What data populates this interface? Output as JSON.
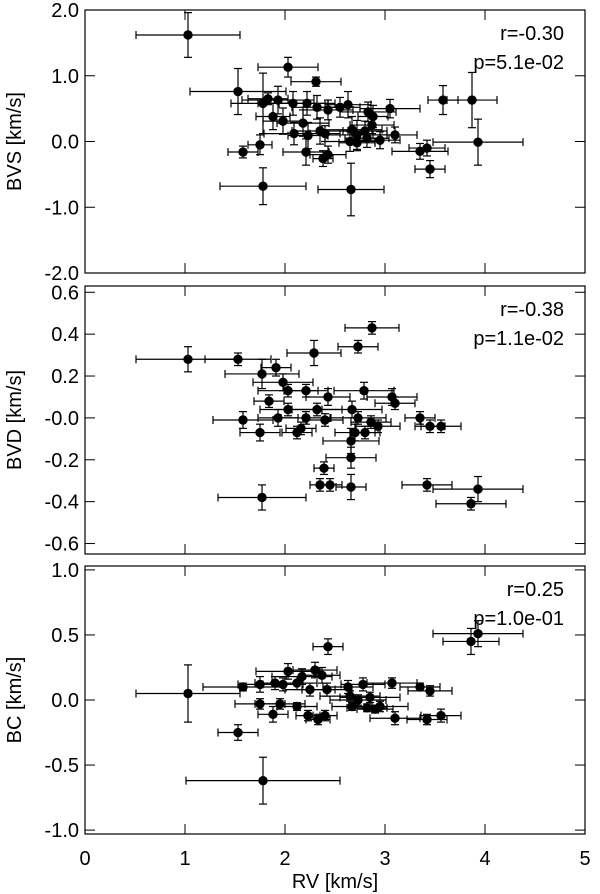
{
  "chart_data": [
    {
      "type": "scatter",
      "xlabel": "",
      "ylabel": "BVS [km/s]",
      "xlim": [
        0,
        5
      ],
      "ylim": [
        -2.0,
        2.0
      ],
      "x_ticks": [
        0,
        1,
        2,
        3,
        4,
        5
      ],
      "x_tick_labels": [
        "",
        "",
        "",
        "",
        "",
        ""
      ],
      "y_ticks": [
        -2.0,
        -1.0,
        0.0,
        1.0,
        2.0
      ],
      "y_tick_labels": [
        "-2.0",
        "-1.0",
        "0.0",
        "1.0",
        "2.0"
      ],
      "grid": false,
      "annotation": {
        "r": "r=-0.30",
        "p": "p=5.1e-02"
      },
      "points": [
        {
          "x": 1.03,
          "y": 1.62,
          "xerr": 0.52,
          "yerr": 0.34
        },
        {
          "x": 2.03,
          "y": 1.13,
          "xerr": 0.3,
          "yerr": 0.15
        },
        {
          "x": 2.31,
          "y": 0.91,
          "xerr": 0.25,
          "yerr": 0.07
        },
        {
          "x": 1.53,
          "y": 0.76,
          "xerr": 0.48,
          "yerr": 0.35
        },
        {
          "x": 1.78,
          "y": 0.58,
          "xerr": 0.32,
          "yerr": 0.46
        },
        {
          "x": 1.93,
          "y": 0.63,
          "xerr": 0.36,
          "yerr": 0.21
        },
        {
          "x": 2.08,
          "y": 0.58,
          "xerr": 0.35,
          "yerr": 0.18
        },
        {
          "x": 2.22,
          "y": 0.58,
          "xerr": 0.28,
          "yerr": 0.18
        },
        {
          "x": 2.32,
          "y": 0.52,
          "xerr": 0.25,
          "yerr": 0.18
        },
        {
          "x": 2.43,
          "y": 0.48,
          "xerr": 0.25,
          "yerr": 0.15
        },
        {
          "x": 2.55,
          "y": 0.52,
          "xerr": 0.2,
          "yerr": 0.15
        },
        {
          "x": 2.63,
          "y": 0.56,
          "xerr": 0.23,
          "yerr": 0.2
        },
        {
          "x": 2.83,
          "y": 0.45,
          "xerr": 0.28,
          "yerr": 0.15
        },
        {
          "x": 2.88,
          "y": 0.38,
          "xerr": 0.15,
          "yerr": 0.17
        },
        {
          "x": 3.05,
          "y": 0.5,
          "xerr": 0.3,
          "yerr": 0.14
        },
        {
          "x": 1.83,
          "y": 0.65,
          "xerr": 0.2,
          "yerr": 0.09
        },
        {
          "x": 1.88,
          "y": 0.38,
          "xerr": 0.17,
          "yerr": 0.2
        },
        {
          "x": 1.98,
          "y": 0.31,
          "xerr": 0.2,
          "yerr": 0.2
        },
        {
          "x": 2.18,
          "y": 0.28,
          "xerr": 0.26,
          "yerr": 0.2
        },
        {
          "x": 2.09,
          "y": 0.12,
          "xerr": 0.3,
          "yerr": 0.17
        },
        {
          "x": 2.23,
          "y": 0.09,
          "xerr": 0.2,
          "yerr": 0.2
        },
        {
          "x": 2.35,
          "y": 0.16,
          "xerr": 0.28,
          "yerr": 0.2
        },
        {
          "x": 2.4,
          "y": 0.12,
          "xerr": 0.15,
          "yerr": 0.12
        },
        {
          "x": 2.67,
          "y": 0.18,
          "xerr": 0.3,
          "yerr": 0.2
        },
        {
          "x": 2.72,
          "y": 0.1,
          "xerr": 0.3,
          "yerr": 0.22
        },
        {
          "x": 2.8,
          "y": 0.16,
          "xerr": 0.22,
          "yerr": 0.15
        },
        {
          "x": 2.87,
          "y": 0.25,
          "xerr": 0.22,
          "yerr": 0.13
        },
        {
          "x": 3.1,
          "y": 0.1,
          "xerr": 0.22,
          "yerr": 0.12
        },
        {
          "x": 2.65,
          "y": 0.0,
          "xerr": 0.25,
          "yerr": 0.15
        },
        {
          "x": 2.72,
          "y": -0.02,
          "xerr": 0.18,
          "yerr": 0.12
        },
        {
          "x": 2.82,
          "y": 0.05,
          "xerr": 0.22,
          "yerr": 0.14
        },
        {
          "x": 2.95,
          "y": 0.02,
          "xerr": 0.2,
          "yerr": 0.13
        },
        {
          "x": 1.58,
          "y": -0.16,
          "xerr": 0.15,
          "yerr": 0.09
        },
        {
          "x": 1.75,
          "y": -0.05,
          "xerr": 0.12,
          "yerr": 0.15
        },
        {
          "x": 2.21,
          "y": -0.16,
          "xerr": 0.23,
          "yerr": 0.2
        },
        {
          "x": 2.38,
          "y": -0.26,
          "xerr": 0.1,
          "yerr": 0.12
        },
        {
          "x": 2.43,
          "y": -0.2,
          "xerr": 0.18,
          "yerr": 0.13
        },
        {
          "x": 3.35,
          "y": -0.15,
          "xerr": 0.28,
          "yerr": 0.12
        },
        {
          "x": 3.42,
          "y": -0.1,
          "xerr": 0.18,
          "yerr": 0.12
        },
        {
          "x": 3.45,
          "y": -0.42,
          "xerr": 0.15,
          "yerr": 0.13
        },
        {
          "x": 3.58,
          "y": 0.63,
          "xerr": 0.15,
          "yerr": 0.22
        },
        {
          "x": 3.87,
          "y": 0.63,
          "xerr": 0.25,
          "yerr": 0.42
        },
        {
          "x": 3.93,
          "y": -0.01,
          "xerr": 0.45,
          "yerr": 0.35
        },
        {
          "x": 1.78,
          "y": -0.68,
          "xerr": 0.43,
          "yerr": 0.28
        },
        {
          "x": 2.66,
          "y": -0.73,
          "xerr": 0.33,
          "yerr": 0.4
        }
      ]
    },
    {
      "type": "scatter",
      "xlabel": "",
      "ylabel": "BVD [km/s]",
      "xlim": [
        0,
        5
      ],
      "ylim": [
        -0.65,
        0.63
      ],
      "x_ticks": [
        0,
        1,
        2,
        3,
        4,
        5
      ],
      "x_tick_labels": [
        "",
        "",
        "",
        "",
        "",
        ""
      ],
      "y_ticks": [
        -0.6,
        -0.4,
        -0.2,
        0.0,
        0.2,
        0.4,
        0.6
      ],
      "y_tick_labels": [
        "-0.6",
        "-0.4",
        "-0.2",
        "-0.0",
        "0.2",
        "0.4",
        "0.6"
      ],
      "grid": false,
      "annotation": {
        "r": "r=-0.38",
        "p": "p=1.1e-02"
      },
      "points": [
        {
          "x": 1.03,
          "y": 0.28,
          "xerr": 0.52,
          "yerr": 0.06
        },
        {
          "x": 1.53,
          "y": 0.28,
          "xerr": 0.33,
          "yerr": 0.03
        },
        {
          "x": 2.29,
          "y": 0.31,
          "xerr": 0.27,
          "yerr": 0.06
        },
        {
          "x": 2.87,
          "y": 0.43,
          "xerr": 0.27,
          "yerr": 0.03
        },
        {
          "x": 2.73,
          "y": 0.34,
          "xerr": 0.2,
          "yerr": 0.03
        },
        {
          "x": 1.77,
          "y": 0.21,
          "xerr": 0.37,
          "yerr": 0.07
        },
        {
          "x": 1.91,
          "y": 0.24,
          "xerr": 0.15,
          "yerr": 0.04
        },
        {
          "x": 1.98,
          "y": 0.17,
          "xerr": 0.3,
          "yerr": 0.04
        },
        {
          "x": 2.03,
          "y": 0.13,
          "xerr": 0.3,
          "yerr": 0.03
        },
        {
          "x": 2.21,
          "y": 0.13,
          "xerr": 0.22,
          "yerr": 0.03
        },
        {
          "x": 2.43,
          "y": 0.1,
          "xerr": 0.22,
          "yerr": 0.04
        },
        {
          "x": 2.79,
          "y": 0.13,
          "xerr": 0.3,
          "yerr": 0.04
        },
        {
          "x": 3.07,
          "y": 0.1,
          "xerr": 0.25,
          "yerr": 0.04
        },
        {
          "x": 1.84,
          "y": 0.08,
          "xerr": 0.15,
          "yerr": 0.03
        },
        {
          "x": 2.03,
          "y": 0.04,
          "xerr": 0.28,
          "yerr": 0.03
        },
        {
          "x": 2.32,
          "y": 0.04,
          "xerr": 0.25,
          "yerr": 0.03
        },
        {
          "x": 2.67,
          "y": 0.04,
          "xerr": 0.3,
          "yerr": 0.04
        },
        {
          "x": 3.1,
          "y": 0.07,
          "xerr": 0.2,
          "yerr": 0.03
        },
        {
          "x": 1.58,
          "y": -0.01,
          "xerr": 0.3,
          "yerr": 0.04
        },
        {
          "x": 1.93,
          "y": 0.0,
          "xerr": 0.2,
          "yerr": 0.04
        },
        {
          "x": 2.21,
          "y": 0.0,
          "xerr": 0.25,
          "yerr": 0.03
        },
        {
          "x": 2.4,
          "y": -0.01,
          "xerr": 0.18,
          "yerr": 0.03
        },
        {
          "x": 2.73,
          "y": 0.0,
          "xerr": 0.28,
          "yerr": 0.03
        },
        {
          "x": 2.86,
          "y": -0.02,
          "xerr": 0.2,
          "yerr": 0.03
        },
        {
          "x": 2.93,
          "y": -0.04,
          "xerr": 0.22,
          "yerr": 0.03
        },
        {
          "x": 3.35,
          "y": 0.0,
          "xerr": 0.15,
          "yerr": 0.03
        },
        {
          "x": 3.45,
          "y": -0.04,
          "xerr": 0.15,
          "yerr": 0.03
        },
        {
          "x": 3.56,
          "y": -0.04,
          "xerr": 0.2,
          "yerr": 0.03
        },
        {
          "x": 1.75,
          "y": -0.07,
          "xerr": 0.2,
          "yerr": 0.04
        },
        {
          "x": 2.12,
          "y": -0.07,
          "xerr": 0.15,
          "yerr": 0.03
        },
        {
          "x": 2.16,
          "y": -0.05,
          "xerr": 0.15,
          "yerr": 0.03
        },
        {
          "x": 2.7,
          "y": -0.07,
          "xerr": 0.2,
          "yerr": 0.04
        },
        {
          "x": 2.8,
          "y": -0.07,
          "xerr": 0.15,
          "yerr": 0.03
        },
        {
          "x": 2.66,
          "y": -0.11,
          "xerr": 0.28,
          "yerr": 0.06
        },
        {
          "x": 2.66,
          "y": -0.19,
          "xerr": 0.25,
          "yerr": 0.05
        },
        {
          "x": 2.39,
          "y": -0.24,
          "xerr": 0.1,
          "yerr": 0.03
        },
        {
          "x": 2.35,
          "y": -0.32,
          "xerr": 0.1,
          "yerr": 0.03
        },
        {
          "x": 2.45,
          "y": -0.32,
          "xerr": 0.12,
          "yerr": 0.03
        },
        {
          "x": 2.66,
          "y": -0.33,
          "xerr": 0.15,
          "yerr": 0.06
        },
        {
          "x": 1.77,
          "y": -0.38,
          "xerr": 0.44,
          "yerr": 0.06
        },
        {
          "x": 3.42,
          "y": -0.32,
          "xerr": 0.25,
          "yerr": 0.03
        },
        {
          "x": 3.86,
          "y": -0.41,
          "xerr": 0.35,
          "yerr": 0.03
        },
        {
          "x": 3.93,
          "y": -0.34,
          "xerr": 0.45,
          "yerr": 0.06
        }
      ]
    },
    {
      "type": "scatter",
      "xlabel": "RV [km/s]",
      "ylabel": "BC [km/s]",
      "xlim": [
        0,
        5
      ],
      "ylim": [
        -1.03,
        1.03
      ],
      "x_ticks": [
        0,
        1,
        2,
        3,
        4,
        5
      ],
      "x_tick_labels": [
        "0",
        "1",
        "2",
        "3",
        "4",
        "5"
      ],
      "y_ticks": [
        -1.0,
        -0.5,
        0.0,
        0.5,
        1.0
      ],
      "y_tick_labels": [
        "-1.0",
        "-0.5",
        "0.0",
        "0.5",
        "1.0"
      ],
      "grid": false,
      "annotation": {
        "r": "r=0.25",
        "p": "p=1.0e-01"
      },
      "points": [
        {
          "x": 1.03,
          "y": 0.05,
          "xerr": 0.52,
          "yerr": 0.22
        },
        {
          "x": 1.53,
          "y": -0.25,
          "xerr": 0.2,
          "yerr": 0.06
        },
        {
          "x": 1.78,
          "y": -0.62,
          "xerr": 0.77,
          "yerr": 0.18
        },
        {
          "x": 1.88,
          "y": -0.11,
          "xerr": 0.15,
          "yerr": 0.06
        },
        {
          "x": 2.43,
          "y": 0.41,
          "xerr": 0.15,
          "yerr": 0.06
        },
        {
          "x": 3.86,
          "y": 0.45,
          "xerr": 0.28,
          "yerr": 0.1
        },
        {
          "x": 3.93,
          "y": 0.51,
          "xerr": 0.45,
          "yerr": 0.1
        },
        {
          "x": 1.58,
          "y": 0.1,
          "xerr": 0.4,
          "yerr": 0.03
        },
        {
          "x": 1.75,
          "y": 0.12,
          "xerr": 0.22,
          "yerr": 0.06
        },
        {
          "x": 1.9,
          "y": 0.13,
          "xerr": 0.2,
          "yerr": 0.05
        },
        {
          "x": 2.03,
          "y": 0.22,
          "xerr": 0.32,
          "yerr": 0.06
        },
        {
          "x": 2.17,
          "y": 0.18,
          "xerr": 0.3,
          "yerr": 0.06
        },
        {
          "x": 2.3,
          "y": 0.23,
          "xerr": 0.22,
          "yerr": 0.06
        },
        {
          "x": 2.37,
          "y": 0.19,
          "xerr": 0.18,
          "yerr": 0.06
        },
        {
          "x": 1.98,
          "y": 0.12,
          "xerr": 0.2,
          "yerr": 0.05
        },
        {
          "x": 2.12,
          "y": 0.13,
          "xerr": 0.2,
          "yerr": 0.05
        },
        {
          "x": 2.25,
          "y": 0.08,
          "xerr": 0.25,
          "yerr": 0.05
        },
        {
          "x": 2.42,
          "y": 0.08,
          "xerr": 0.25,
          "yerr": 0.05
        },
        {
          "x": 2.63,
          "y": 0.1,
          "xerr": 0.25,
          "yerr": 0.05
        },
        {
          "x": 2.78,
          "y": 0.12,
          "xerr": 0.22,
          "yerr": 0.05
        },
        {
          "x": 3.07,
          "y": 0.13,
          "xerr": 0.25,
          "yerr": 0.04
        },
        {
          "x": 3.35,
          "y": 0.1,
          "xerr": 0.2,
          "yerr": 0.03
        },
        {
          "x": 3.45,
          "y": 0.07,
          "xerr": 0.22,
          "yerr": 0.04
        },
        {
          "x": 2.65,
          "y": 0.03,
          "xerr": 0.3,
          "yerr": 0.04
        },
        {
          "x": 2.73,
          "y": 0.0,
          "xerr": 0.28,
          "yerr": 0.04
        },
        {
          "x": 2.85,
          "y": 0.02,
          "xerr": 0.3,
          "yerr": 0.04
        },
        {
          "x": 2.95,
          "y": -0.05,
          "xerr": 0.28,
          "yerr": 0.04
        },
        {
          "x": 2.67,
          "y": -0.05,
          "xerr": 0.2,
          "yerr": 0.03
        },
        {
          "x": 2.82,
          "y": -0.06,
          "xerr": 0.2,
          "yerr": 0.03
        },
        {
          "x": 2.9,
          "y": -0.07,
          "xerr": 0.18,
          "yerr": 0.03
        },
        {
          "x": 1.75,
          "y": -0.03,
          "xerr": 0.25,
          "yerr": 0.04
        },
        {
          "x": 1.95,
          "y": -0.03,
          "xerr": 0.25,
          "yerr": 0.04
        },
        {
          "x": 2.12,
          "y": -0.05,
          "xerr": 0.2,
          "yerr": 0.03
        },
        {
          "x": 2.23,
          "y": -0.12,
          "xerr": 0.12,
          "yerr": 0.04
        },
        {
          "x": 2.33,
          "y": -0.15,
          "xerr": 0.12,
          "yerr": 0.04
        },
        {
          "x": 2.4,
          "y": -0.12,
          "xerr": 0.12,
          "yerr": 0.04
        },
        {
          "x": 3.1,
          "y": -0.14,
          "xerr": 0.25,
          "yerr": 0.05
        },
        {
          "x": 3.42,
          "y": -0.15,
          "xerr": 0.2,
          "yerr": 0.04
        },
        {
          "x": 3.56,
          "y": -0.12,
          "xerr": 0.2,
          "yerr": 0.05
        }
      ]
    }
  ]
}
